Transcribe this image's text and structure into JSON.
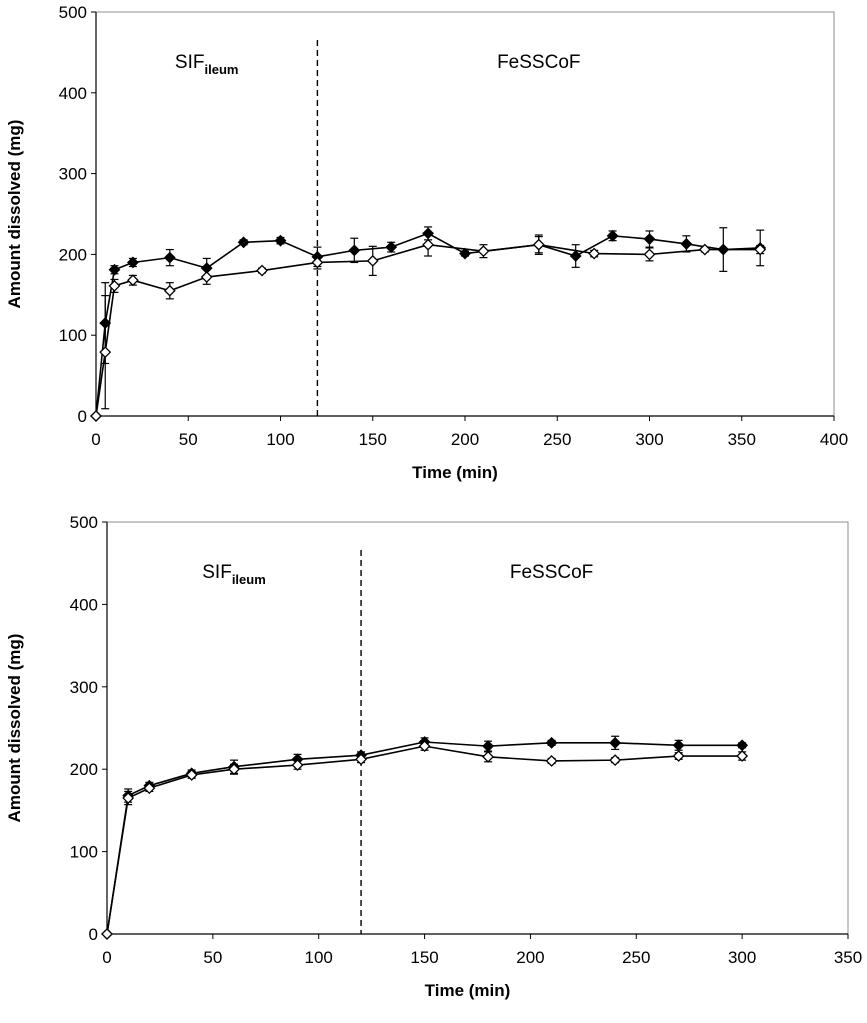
{
  "chart_data": [
    {
      "type": "line",
      "title": "",
      "xlabel": "Time (min)",
      "ylabel": "Amount dissolved (mg)",
      "xlim": [
        0,
        400
      ],
      "ylim": [
        0,
        500
      ],
      "xticks": [
        0,
        50,
        100,
        150,
        200,
        250,
        300,
        350,
        400
      ],
      "yticks": [
        0,
        100,
        200,
        300,
        400,
        500
      ],
      "grid": false,
      "annotations": {
        "left_region": {
          "main": "SIF",
          "sub": "ileum",
          "x": 60
        },
        "right_region": {
          "main": "FeSSCoF",
          "x": 240
        },
        "divider_x": 120
      },
      "series": [
        {
          "marker": "filled-diamond",
          "x": [
            0,
            5,
            10,
            20,
            40,
            60,
            80,
            100,
            120,
            140,
            160,
            180,
            200,
            240,
            260,
            280,
            300,
            320,
            340,
            360
          ],
          "y": [
            0,
            115,
            181,
            190,
            196,
            183,
            215,
            217,
            197,
            205,
            209,
            226,
            201,
            212,
            198,
            223,
            219,
            213,
            206,
            208
          ],
          "err": [
            0,
            50,
            5,
            5,
            10,
            12,
            3,
            4,
            12,
            15,
            6,
            8,
            3,
            12,
            14,
            6,
            10,
            10,
            27,
            22
          ]
        },
        {
          "marker": "open-diamond",
          "x": [
            0,
            5,
            10,
            20,
            40,
            60,
            90,
            120,
            150,
            180,
            210,
            240,
            270,
            300,
            330,
            360
          ],
          "y": [
            0,
            79,
            161,
            168,
            155,
            172,
            180,
            190,
            192,
            212,
            204,
            212,
            201,
            200,
            206,
            206
          ],
          "err": [
            0,
            70,
            8,
            6,
            10,
            9,
            3,
            8,
            18,
            14,
            8,
            10,
            4,
            8,
            3,
            5
          ]
        }
      ]
    },
    {
      "type": "line",
      "title": "",
      "xlabel": "Time (min)",
      "ylabel": "Amount dissolved (mg)",
      "xlim": [
        0,
        350
      ],
      "ylim": [
        0,
        500
      ],
      "xticks": [
        0,
        50,
        100,
        150,
        200,
        250,
        300,
        350
      ],
      "yticks": [
        0,
        100,
        200,
        300,
        400,
        500
      ],
      "grid": false,
      "annotations": {
        "left_region": {
          "main": "SIF",
          "sub": "ileum",
          "x": 60
        },
        "right_region": {
          "main": "FeSSCoF",
          "x": 210
        },
        "divider_x": 120
      },
      "series": [
        {
          "marker": "filled-diamond",
          "x": [
            0,
            10,
            20,
            40,
            60,
            90,
            120,
            150,
            180,
            210,
            240,
            270,
            300
          ],
          "y": [
            0,
            168,
            180,
            195,
            203,
            212,
            217,
            233,
            228,
            232,
            232,
            229,
            229
          ],
          "err": [
            0,
            8,
            4,
            4,
            8,
            6,
            4,
            5,
            6,
            3,
            8,
            6,
            3
          ]
        },
        {
          "marker": "open-diamond",
          "x": [
            0,
            10,
            20,
            40,
            60,
            90,
            120,
            150,
            180,
            210,
            240,
            270,
            300
          ],
          "y": [
            0,
            165,
            177,
            193,
            200,
            205,
            212,
            228,
            215,
            210,
            211,
            216,
            216
          ],
          "err": [
            0,
            8,
            4,
            4,
            6,
            5,
            4,
            5,
            6,
            3,
            3,
            4,
            5
          ]
        }
      ]
    }
  ]
}
